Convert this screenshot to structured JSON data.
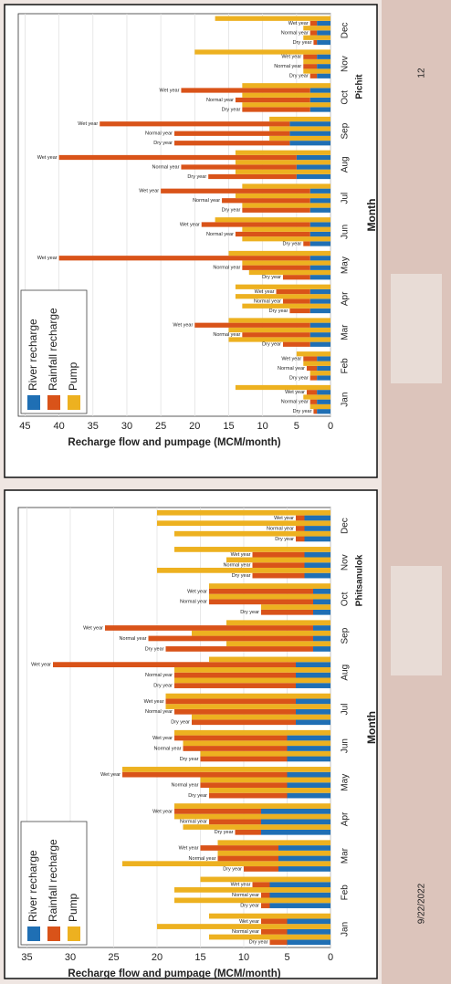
{
  "chart_data": [
    {
      "type": "bar",
      "title": "Pichit",
      "stacked": true,
      "grid": true,
      "x_label": "Recharge flow and pumpage (MCM/month)",
      "y_label": "Month",
      "categories": [
        "Jan",
        "Feb",
        "Mar",
        "Apr",
        "May",
        "Jun",
        "Jul",
        "Aug",
        "Sep",
        "Oct",
        "Nov",
        "Dec"
      ],
      "groups": [
        "Dry year",
        "Normal year",
        "Wet year"
      ],
      "xlim": [
        0,
        46
      ],
      "xticks": [
        0,
        5,
        10,
        15,
        20,
        25,
        30,
        35,
        40,
        45
      ],
      "series": [
        {
          "name": "River recharge",
          "color": "#1f6fb4",
          "values": [
            [
              2,
              2,
              2
            ],
            [
              2,
              2,
              2
            ],
            [
              3,
              3,
              3
            ],
            [
              3,
              3,
              3
            ],
            [
              3,
              3,
              3
            ],
            [
              3,
              3,
              3
            ],
            [
              3,
              3,
              3
            ],
            [
              5,
              5,
              5
            ],
            [
              6,
              6,
              6
            ],
            [
              3,
              3,
              3
            ],
            [
              2,
              2,
              2
            ],
            [
              2,
              2,
              2
            ]
          ]
        },
        {
          "name": "Rainfall recharge",
          "color": "#d95319",
          "values": [
            [
              0.5,
              1,
              1.5
            ],
            [
              1,
              1.5,
              2
            ],
            [
              4,
              10,
              17
            ],
            [
              3,
              4,
              5
            ],
            [
              4,
              10,
              37
            ],
            [
              1,
              11,
              16
            ],
            [
              10,
              13,
              22
            ],
            [
              13,
              17,
              35
            ],
            [
              17,
              17,
              28
            ],
            [
              10,
              11,
              19
            ],
            [
              1,
              2,
              2
            ],
            [
              0.5,
              1,
              1
            ]
          ]
        },
        {
          "name": "Pump",
          "color": "#edb120",
          "values": [
            [
              3,
              4,
              14
            ],
            [
              3,
              4,
              5
            ],
            [
              15,
              15,
              15
            ],
            [
              13,
              14,
              14
            ],
            [
              12,
              13,
              15
            ],
            [
              13,
              13,
              17
            ],
            [
              13,
              14,
              13
            ],
            [
              14,
              14,
              14
            ],
            [
              9,
              9,
              9
            ],
            [
              13,
              13,
              13
            ],
            [
              4,
              4,
              20
            ],
            [
              4,
              4,
              17
            ]
          ]
        }
      ]
    },
    {
      "type": "bar",
      "title": "Phitsanulok",
      "stacked": true,
      "grid": true,
      "x_label": "Recharge flow and pumpage (MCM/month)",
      "y_label": "Month",
      "categories": [
        "Jan",
        "Feb",
        "Mar",
        "Apr",
        "May",
        "Jun",
        "Jul",
        "Aug",
        "Sep",
        "Oct",
        "Nov",
        "Dec"
      ],
      "groups": [
        "Dry year",
        "Normal year",
        "Wet year"
      ],
      "xlim": [
        0,
        36
      ],
      "xticks": [
        0,
        5,
        10,
        15,
        20,
        25,
        30,
        35
      ],
      "series": [
        {
          "name": "River recharge",
          "color": "#1f6fb4",
          "values": [
            [
              5,
              5,
              5
            ],
            [
              7,
              7,
              7
            ],
            [
              6,
              6,
              6
            ],
            [
              8,
              8,
              8
            ],
            [
              5,
              5,
              5
            ],
            [
              5,
              5,
              5
            ],
            [
              4,
              4,
              4
            ],
            [
              4,
              4,
              4
            ],
            [
              2,
              2,
              2
            ],
            [
              2,
              2,
              2
            ],
            [
              3,
              3,
              3
            ],
            [
              3,
              3,
              3
            ]
          ]
        },
        {
          "name": "Rainfall recharge",
          "color": "#d95319",
          "values": [
            [
              2,
              3,
              3
            ],
            [
              1,
              1,
              2
            ],
            [
              4,
              7,
              9
            ],
            [
              3,
              6,
              10
            ],
            [
              9,
              10,
              19
            ],
            [
              10,
              12,
              13
            ],
            [
              12,
              14,
              15
            ],
            [
              14,
              14,
              28
            ],
            [
              17,
              19,
              24
            ],
            [
              6,
              12,
              12
            ],
            [
              6,
              6,
              6
            ],
            [
              1,
              1,
              1
            ]
          ]
        },
        {
          "name": "Pump",
          "color": "#edb120",
          "values": [
            [
              14,
              20,
              14
            ],
            [
              18,
              18,
              15
            ],
            [
              24,
              13,
              13
            ],
            [
              17,
              18,
              18
            ],
            [
              14,
              15,
              24
            ],
            [
              15,
              17,
              18
            ],
            [
              16,
              19,
              19
            ],
            [
              18,
              18,
              14
            ],
            [
              12,
              16,
              12
            ],
            [
              8,
              14,
              14
            ],
            [
              20,
              12,
              18
            ],
            [
              18,
              20,
              20
            ]
          ]
        }
      ]
    }
  ],
  "slide_number": "12",
  "date": "9/22/2022"
}
